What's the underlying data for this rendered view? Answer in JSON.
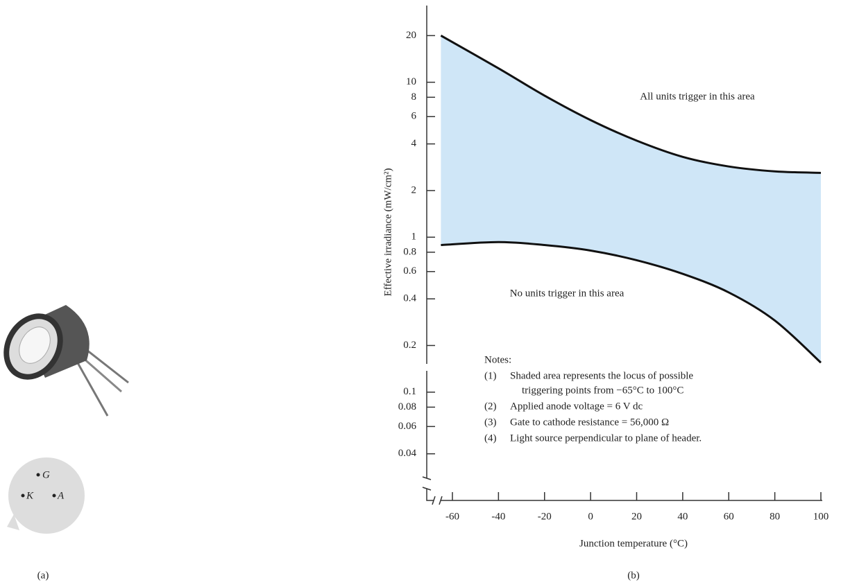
{
  "chart_data": {
    "type": "band",
    "y_label": "Effective irradiance (mW/cm²)",
    "x_label": "Junction temperature (°C)",
    "x": [
      -65,
      -40,
      -20,
      0,
      20,
      40,
      60,
      80,
      100
    ],
    "upper": [
      20,
      12.3,
      8.2,
      5.7,
      4.2,
      3.3,
      2.86,
      2.66,
      2.6
    ],
    "lower": [
      0.89,
      0.93,
      0.89,
      0.82,
      0.71,
      0.58,
      0.44,
      0.29,
      0.155
    ],
    "fill_color": "#cfe6f7",
    "line_color": "#111",
    "log_y": true,
    "xlim": [
      -65,
      100
    ],
    "xticks": [
      -60,
      -40,
      -20,
      0,
      20,
      40,
      60,
      80,
      100
    ],
    "ylim": [
      0.02,
      30
    ],
    "yticks": [
      0.04,
      0.06,
      0.08,
      0.1,
      0.2,
      0.4,
      0.6,
      0.8,
      1,
      2,
      4,
      6,
      8,
      10,
      20
    ],
    "annotations": [
      "All units trigger in this area",
      "No units trigger in this area"
    ],
    "notes": {
      "title": "Notes:",
      "items": [
        {
          "num": "(1)",
          "lines": [
            "Shaded area represents the locus of possible",
            "triggering points from −65°C to 100°C"
          ]
        },
        {
          "num": "(2)",
          "lines": [
            "Applied anode voltage = 6 V dc"
          ]
        },
        {
          "num": "(3)",
          "lines": [
            "Gate to cathode resistance = 56,000 Ω"
          ]
        },
        {
          "num": "(4)",
          "lines": [
            "Light source perpendicular to plane of header."
          ]
        }
      ]
    },
    "caption": "(b)"
  },
  "device": {
    "pins": [
      "G",
      "K",
      "A"
    ],
    "caption": "(a)"
  }
}
